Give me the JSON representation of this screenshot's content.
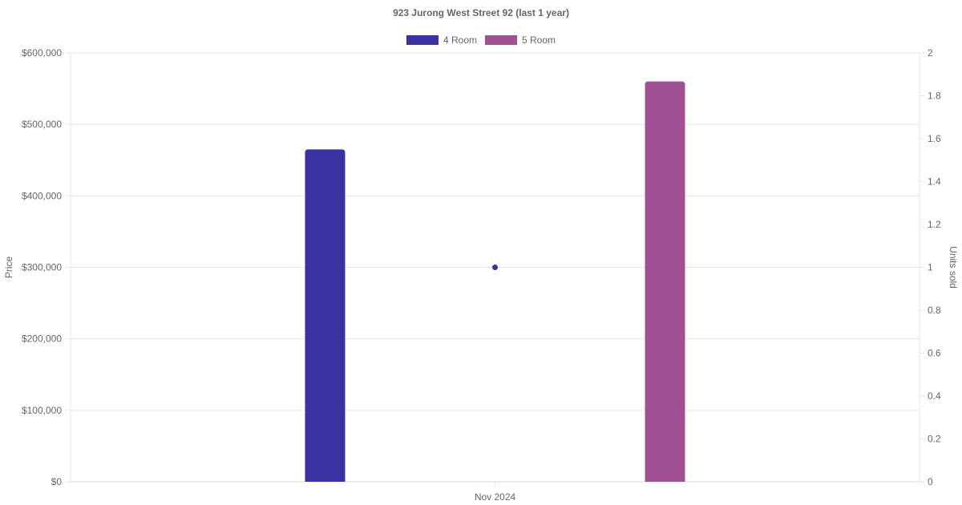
{
  "chart_data": {
    "type": "bar",
    "title": "923 Jurong West Street 92 (last 1 year)",
    "categories": [
      "Nov 2024"
    ],
    "series": [
      {
        "name": "4 Room",
        "type": "bar",
        "axis": "price",
        "values": [
          465000
        ],
        "color": "#3833a0"
      },
      {
        "name": "5 Room",
        "type": "bar",
        "axis": "price",
        "values": [
          560000
        ],
        "color": "#a05095"
      },
      {
        "name": "Units sold",
        "type": "scatter",
        "axis": "units",
        "values": [
          1
        ],
        "color": "#3833a0"
      }
    ],
    "ylabel": "Price",
    "y2label": "Units sold",
    "ylim": [
      0,
      600000
    ],
    "y2lim": [
      0,
      2
    ],
    "y_ticks": [
      "$0",
      "$100,000",
      "$200,000",
      "$300,000",
      "$400,000",
      "$500,000",
      "$600,000"
    ],
    "y2_ticks": [
      "0",
      "0.2",
      "0.4",
      "0.6",
      "0.8",
      "1",
      "1.2",
      "1.4",
      "1.6",
      "1.8",
      "2"
    ],
    "legend": [
      {
        "label": "4 Room",
        "color": "#3833a0"
      },
      {
        "label": "5 Room",
        "color": "#a05095"
      }
    ],
    "legend_position": "top",
    "grid": true
  }
}
